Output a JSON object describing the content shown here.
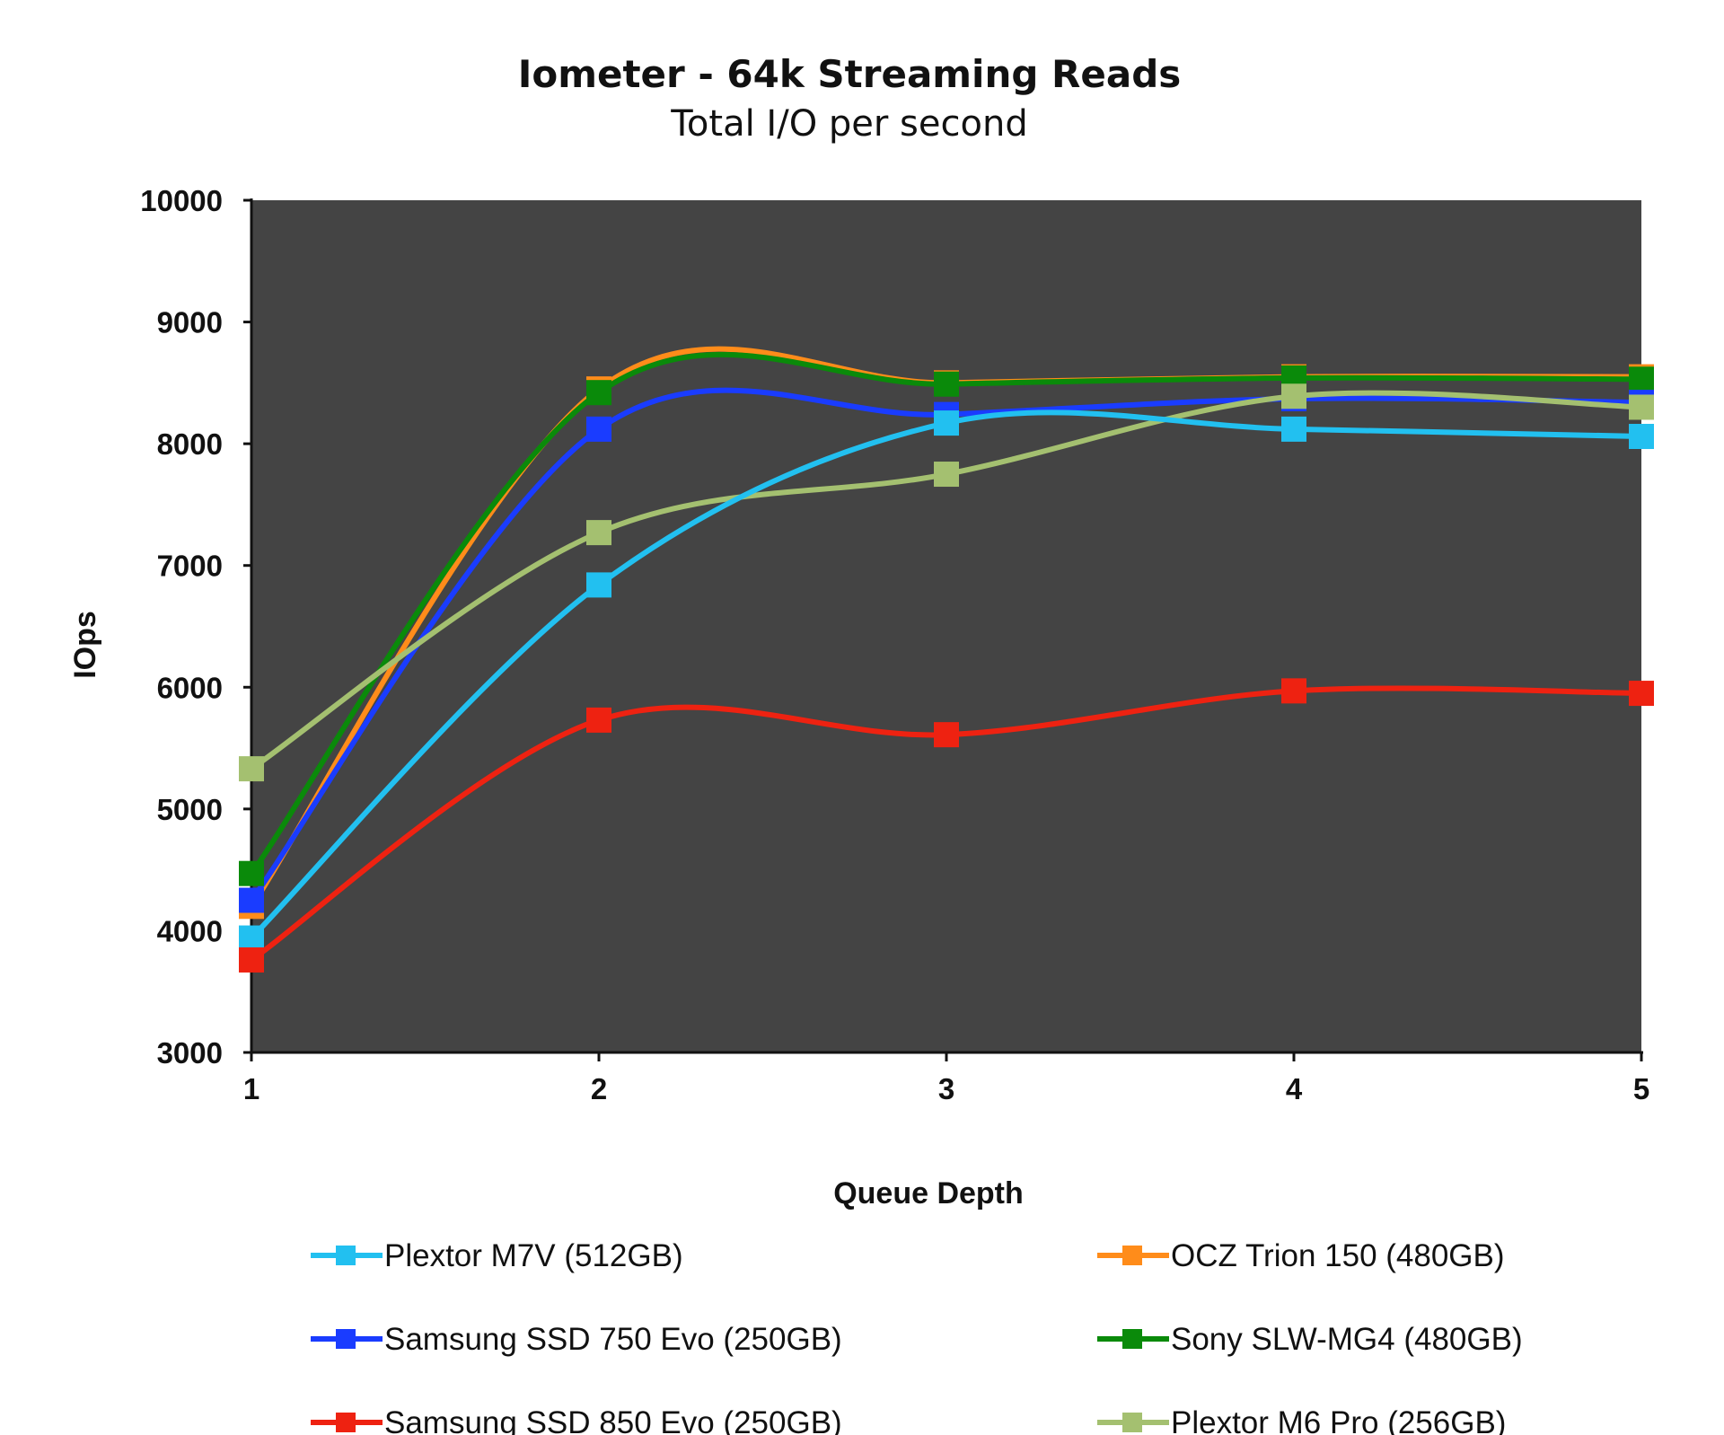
{
  "chart_data": {
    "type": "line",
    "title": "Iometer - 64k Streaming Reads",
    "subtitle": "Total I/O per second",
    "xlabel": "Queue Depth",
    "ylabel": "IOps",
    "x": [
      1,
      2,
      3,
      4,
      5
    ],
    "x_tick_labels": [
      "1",
      "2",
      "3",
      "4",
      "5"
    ],
    "ylim": [
      3000,
      10000
    ],
    "y_ticks": [
      3000,
      4000,
      5000,
      6000,
      7000,
      8000,
      9000,
      10000
    ],
    "y_tick_labels": [
      "3000",
      "4000",
      "5000",
      "6000",
      "7000",
      "8000",
      "9000",
      "10000"
    ],
    "plot_background": "#444444",
    "grid": false,
    "smooth": true,
    "legend_position": "bottom",
    "series": [
      {
        "name": "OCZ Trion 150 (480GB)",
        "color": "#ff8c1a",
        "values": [
          4200,
          8450,
          8500,
          8550,
          8550
        ]
      },
      {
        "name": "Sony SLW-MG4 (480GB)",
        "color": "#0a8a0a",
        "values": [
          4470,
          8420,
          8490,
          8540,
          8530
        ]
      },
      {
        "name": "Samsung SSD 750 Evo (250GB)",
        "color": "#1a3cff",
        "values": [
          4250,
          8120,
          8240,
          8370,
          8340
        ]
      },
      {
        "name": "Plextor M6 Pro (256GB)",
        "color": "#a4c070",
        "values": [
          5330,
          7270,
          7750,
          8390,
          8300
        ]
      },
      {
        "name": "Plextor M7V (512GB)",
        "color": "#22c0f0",
        "values": [
          3940,
          6840,
          8170,
          8120,
          8060
        ]
      },
      {
        "name": "Samsung SSD 850 Evo (250GB)",
        "color": "#ee2211",
        "values": [
          3760,
          5730,
          5610,
          5970,
          5950
        ]
      }
    ],
    "legend_order": [
      "Plextor M7V (512GB)",
      "OCZ Trion 150 (480GB)",
      "Samsung SSD 750 Evo (250GB)",
      "Sony SLW-MG4 (480GB)",
      "Samsung SSD 850 Evo (250GB)",
      "Plextor M6 Pro (256GB)"
    ]
  }
}
